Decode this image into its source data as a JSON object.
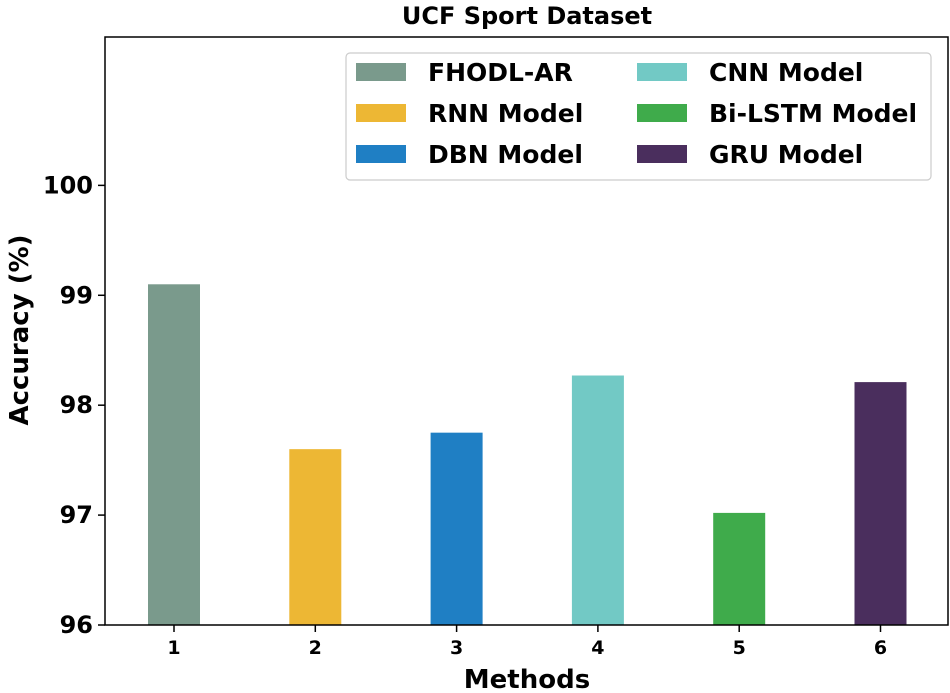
{
  "chart_data": {
    "type": "bar",
    "title": "UCF Sport Dataset",
    "xlabel": "Methods",
    "ylabel": "Accuracy (%)",
    "ylim": [
      96,
      101.35
    ],
    "yticks": [
      "96",
      "97",
      "98",
      "99",
      "100"
    ],
    "ytick_values": [
      96,
      97,
      98,
      99,
      100
    ],
    "categories": [
      "1",
      "2",
      "3",
      "4",
      "5",
      "6"
    ],
    "series": [
      {
        "name": "FHODL-AR",
        "value": 99.1,
        "color": "#7a9a8c"
      },
      {
        "name": "RNN Model",
        "value": 97.6,
        "color": "#edb734"
      },
      {
        "name": "DBN Model",
        "value": 97.75,
        "color": "#1f7fc4"
      },
      {
        "name": "CNN Model",
        "value": 98.27,
        "color": "#72c9c5"
      },
      {
        "name": "Bi-LSTM Model",
        "value": 97.02,
        "color": "#3fab4b"
      },
      {
        "name": "GRU Model",
        "value": 98.21,
        "color": "#4a2e5d"
      }
    ],
    "legend_position": "top-right",
    "legend_columns": 2
  }
}
